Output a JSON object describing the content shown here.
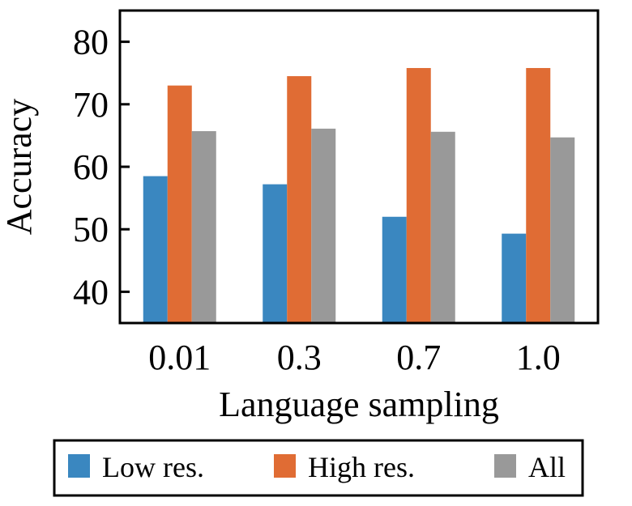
{
  "chart_data": {
    "type": "bar",
    "title": "",
    "xlabel": "Language sampling",
    "ylabel": "Accuracy",
    "categories": [
      "0.01",
      "0.3",
      "0.7",
      "1.0"
    ],
    "series": [
      {
        "name": "Low res.",
        "color": "#3a87c0",
        "values": [
          58.5,
          57.2,
          52.0,
          49.3
        ]
      },
      {
        "name": "High res.",
        "color": "#e06c34",
        "values": [
          73.0,
          74.5,
          75.8,
          75.8
        ]
      },
      {
        "name": "All",
        "color": "#999999",
        "values": [
          65.7,
          66.1,
          65.6,
          64.7
        ]
      }
    ],
    "ylim": [
      35,
      85
    ],
    "yticks": [
      40,
      50,
      60,
      70,
      80
    ],
    "ytick_labels": [
      "40",
      "50",
      "60",
      "70",
      "80"
    ],
    "grid": false,
    "legend_position": "bottom"
  }
}
